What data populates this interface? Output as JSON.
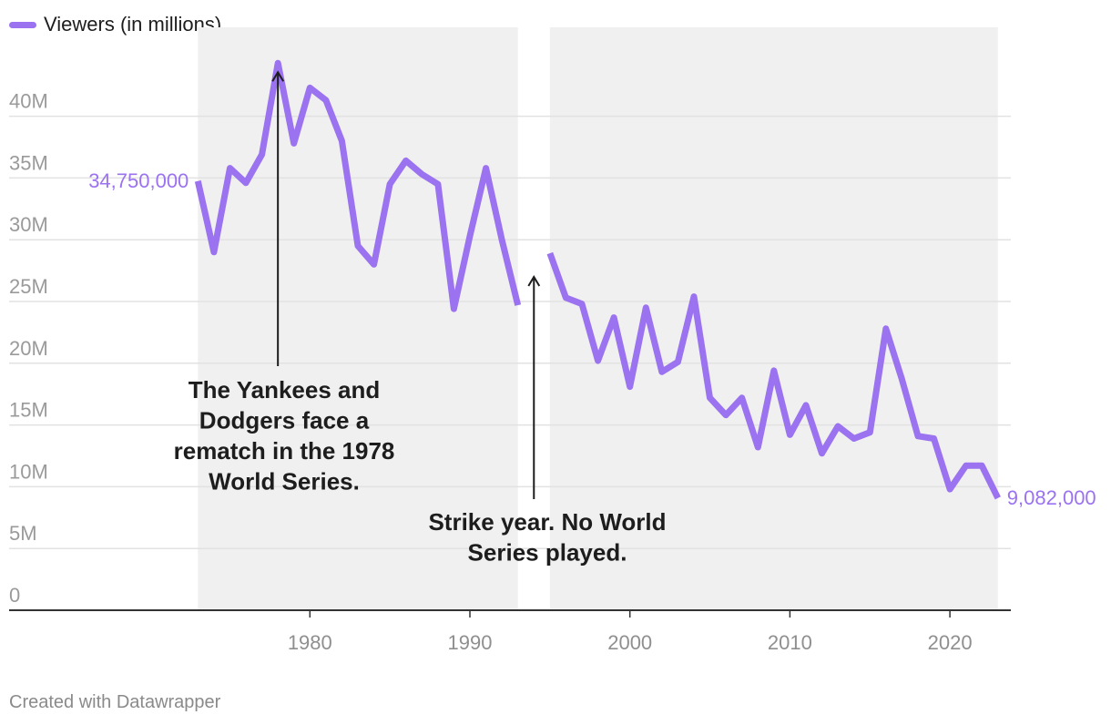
{
  "legend": {
    "label": "Viewers (in millions)"
  },
  "credit": "Created with Datawrapper",
  "chart_data": {
    "type": "line",
    "title": "",
    "xlabel": "",
    "ylabel": "",
    "ylim": [
      0,
      45000000
    ],
    "xlim": [
      1972,
      2026
    ],
    "y_ticks": [
      0,
      5000000,
      10000000,
      15000000,
      20000000,
      25000000,
      30000000,
      35000000,
      40000000
    ],
    "y_tick_labels": [
      "0",
      "5M",
      "10M",
      "15M",
      "20M",
      "25M",
      "30M",
      "35M",
      "40M"
    ],
    "x_ticks": [
      1980,
      1990,
      2000,
      2010,
      2020
    ],
    "x_tick_labels": [
      "1980",
      "1990",
      "2000",
      "2010",
      "2020"
    ],
    "grid": "horizontal",
    "legend_position": "top-left",
    "colors": {
      "line": "#9b72ef",
      "area": "#f0f0f0",
      "grid": "#e2e2e2",
      "axis": "#333333"
    },
    "series": [
      {
        "name": "Viewers (in millions)",
        "points": [
          [
            1973,
            34750000
          ],
          [
            1974,
            29000000
          ],
          [
            1975,
            35800000
          ],
          [
            1976,
            34600000
          ],
          [
            1977,
            36900000
          ],
          [
            1978,
            44300000
          ],
          [
            1979,
            37800000
          ],
          [
            1980,
            42300000
          ],
          [
            1981,
            41300000
          ],
          [
            1982,
            38000000
          ],
          [
            1983,
            29500000
          ],
          [
            1984,
            28000000
          ],
          [
            1985,
            34500000
          ],
          [
            1986,
            36400000
          ],
          [
            1987,
            35300000
          ],
          [
            1988,
            34500000
          ],
          [
            1989,
            24400000
          ],
          [
            1990,
            30300000
          ],
          [
            1991,
            35800000
          ],
          [
            1992,
            30000000
          ],
          [
            1993,
            24700000
          ],
          [
            1994,
            null
          ],
          [
            1995,
            28900000
          ],
          [
            1996,
            25300000
          ],
          [
            1997,
            24800000
          ],
          [
            1998,
            20200000
          ],
          [
            1999,
            23700000
          ],
          [
            2000,
            18100000
          ],
          [
            2001,
            24500000
          ],
          [
            2002,
            19300000
          ],
          [
            2003,
            20100000
          ],
          [
            2004,
            25400000
          ],
          [
            2005,
            17200000
          ],
          [
            2006,
            15800000
          ],
          [
            2007,
            17200000
          ],
          [
            2008,
            13200000
          ],
          [
            2009,
            19400000
          ],
          [
            2010,
            14200000
          ],
          [
            2011,
            16600000
          ],
          [
            2012,
            12700000
          ],
          [
            2013,
            14900000
          ],
          [
            2014,
            13900000
          ],
          [
            2015,
            14400000
          ],
          [
            2016,
            22800000
          ],
          [
            2017,
            18700000
          ],
          [
            2018,
            14100000
          ],
          [
            2019,
            13900000
          ],
          [
            2020,
            9800000
          ],
          [
            2021,
            11700000
          ],
          [
            2022,
            11700000
          ],
          [
            2023,
            9082000
          ]
        ]
      }
    ],
    "value_labels": [
      {
        "year": 1973,
        "text": "34,750,000"
      },
      {
        "year": 2023,
        "text": "9,082,000"
      }
    ],
    "annotations": [
      {
        "lines": [
          "The Yankees and",
          "Dodgers face a",
          "rematch in the 1978",
          "World Series."
        ],
        "x": 1978,
        "y": 44300000
      },
      {
        "lines": [
          "Strike year. No World",
          "Series played."
        ],
        "x": 1994,
        "y": 27000000
      }
    ]
  }
}
